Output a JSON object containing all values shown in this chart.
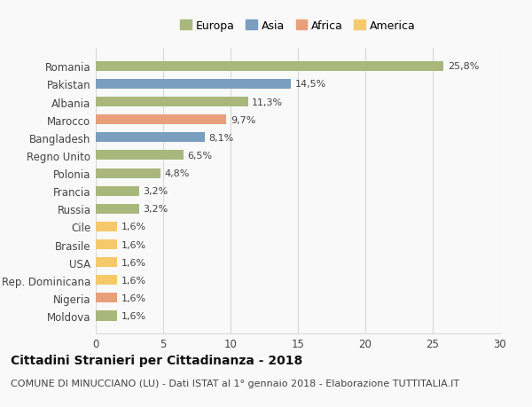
{
  "categories": [
    "Moldova",
    "Nigeria",
    "Rep. Dominicana",
    "USA",
    "Brasile",
    "Cile",
    "Russia",
    "Francia",
    "Polonia",
    "Regno Unito",
    "Bangladesh",
    "Marocco",
    "Albania",
    "Pakistan",
    "Romania"
  ],
  "values": [
    1.6,
    1.6,
    1.6,
    1.6,
    1.6,
    1.6,
    3.2,
    3.2,
    4.8,
    6.5,
    8.1,
    9.7,
    11.3,
    14.5,
    25.8
  ],
  "labels": [
    "1,6%",
    "1,6%",
    "1,6%",
    "1,6%",
    "1,6%",
    "1,6%",
    "3,2%",
    "3,2%",
    "4,8%",
    "6,5%",
    "8,1%",
    "9,7%",
    "11,3%",
    "14,5%",
    "25,8%"
  ],
  "colors": [
    "#a8b87c",
    "#e8a07a",
    "#f5c96a",
    "#f5c96a",
    "#f5c96a",
    "#f5c96a",
    "#a8b87c",
    "#a8b87c",
    "#a8b87c",
    "#a8b87c",
    "#7a9ec0",
    "#e8a07a",
    "#a8b87c",
    "#7a9ec0",
    "#a8b87c"
  ],
  "legend_labels": [
    "Europa",
    "Asia",
    "Africa",
    "America"
  ],
  "legend_colors": [
    "#a8b87c",
    "#7a9ec0",
    "#e8a07a",
    "#f5c96a"
  ],
  "xlim": [
    0,
    30
  ],
  "xticks": [
    0,
    5,
    10,
    15,
    20,
    25,
    30
  ],
  "title": "Cittadini Stranieri per Cittadinanza - 2018",
  "subtitle": "COMUNE DI MINUCCIANO (LU) - Dati ISTAT al 1° gennaio 2018 - Elaborazione TUTTITALIA.IT",
  "bg_color": "#f9f9f9",
  "grid_color": "#d8d8d8",
  "bar_height": 0.55,
  "title_fontsize": 10,
  "subtitle_fontsize": 8,
  "label_fontsize": 8,
  "tick_fontsize": 8.5,
  "legend_fontsize": 9
}
